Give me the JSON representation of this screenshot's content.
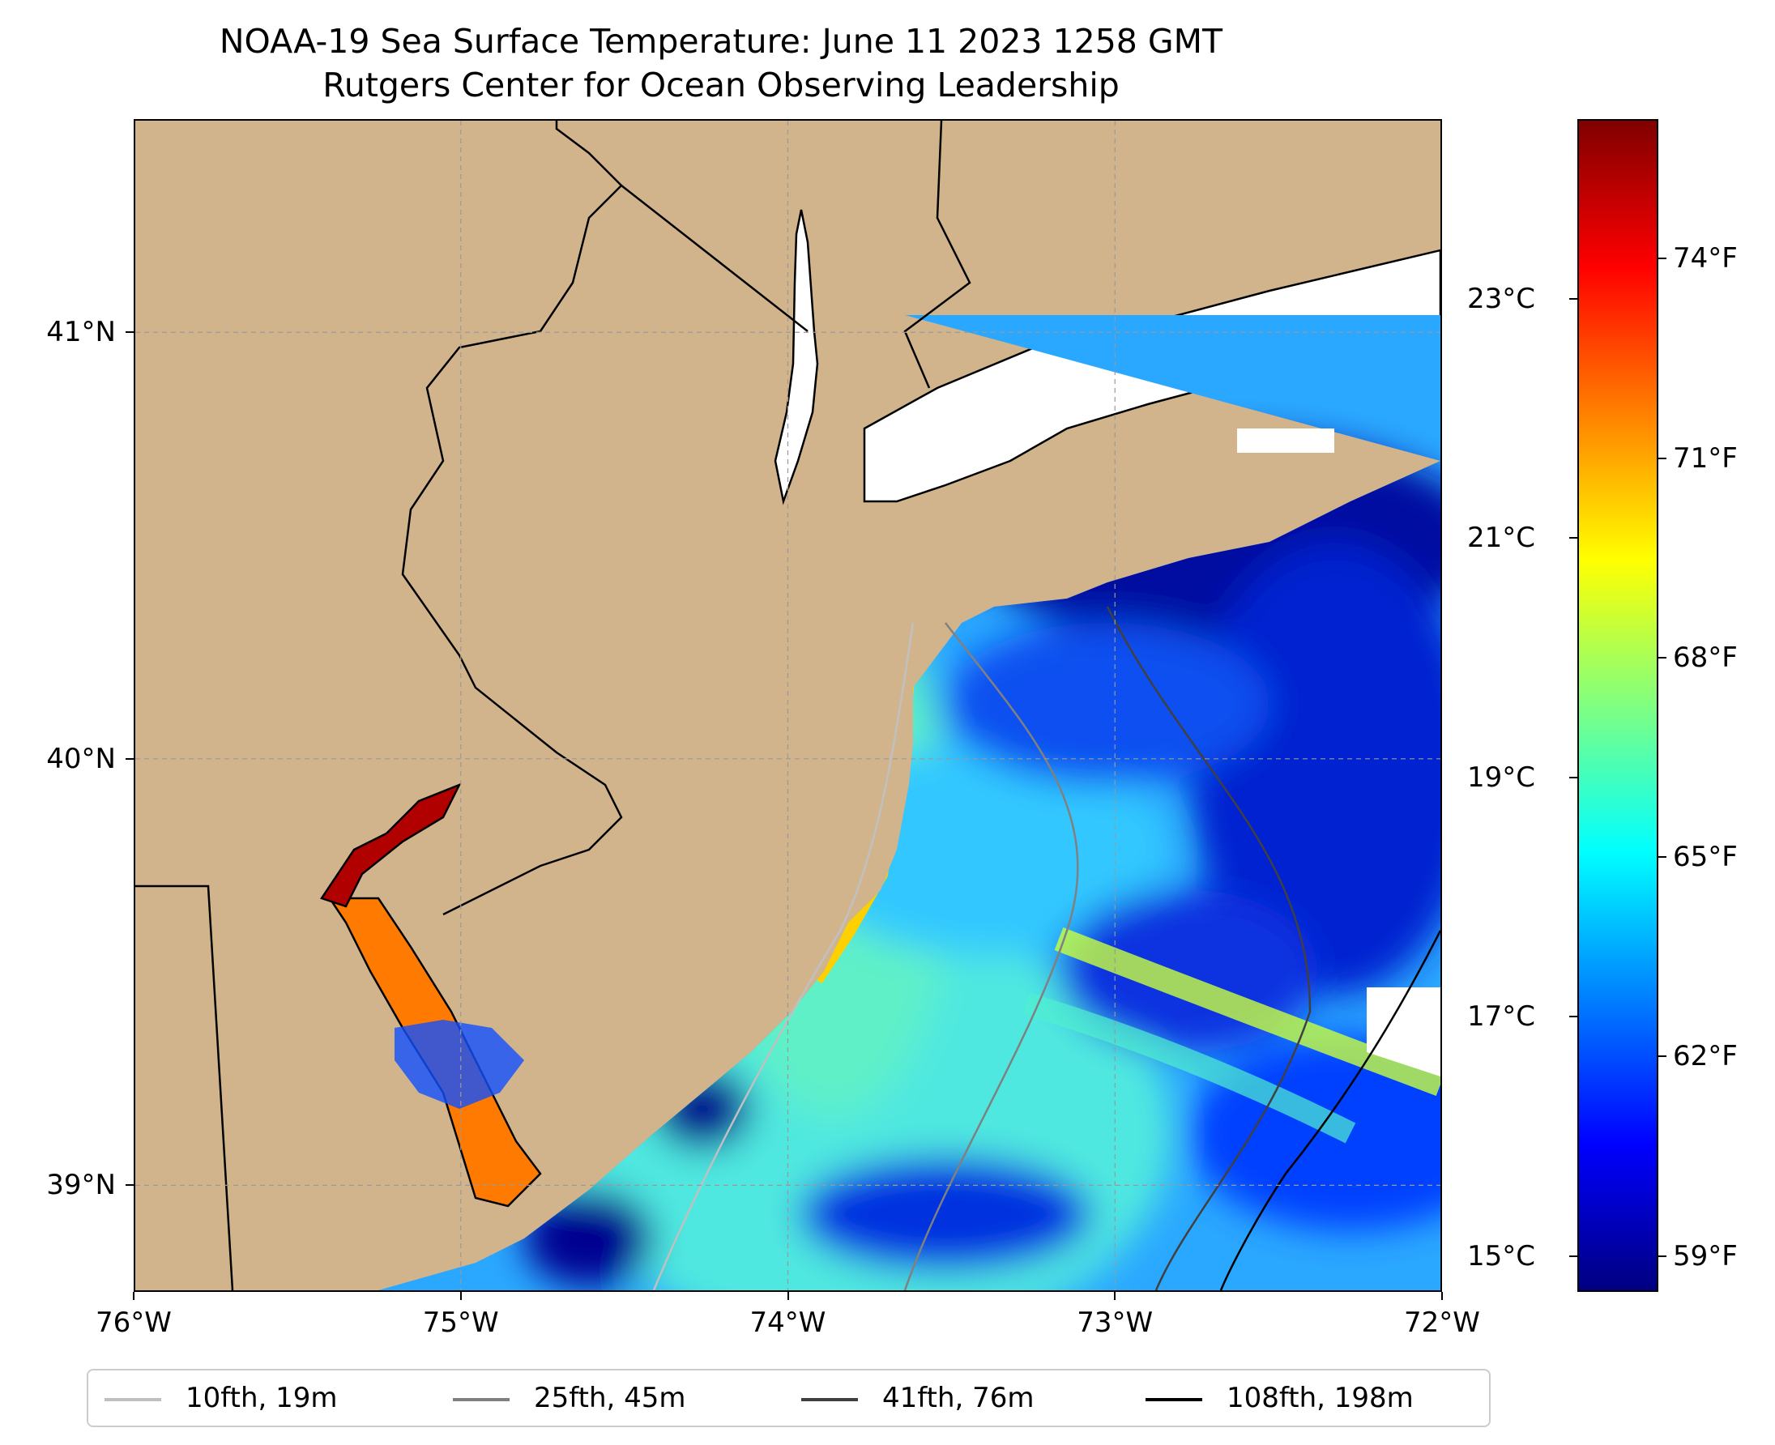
{
  "title": {
    "line1": "NOAA-19 Sea Surface Temperature: June 11 2023 1258 GMT",
    "line2": "Rutgers Center for Ocean Observing Leadership"
  },
  "map": {
    "extent": {
      "lon": [
        -76,
        -72
      ],
      "lat": [
        38.75,
        41.5
      ]
    },
    "land_color": "#d2b48c",
    "grid": "dashed",
    "x_ticks": [
      {
        "lon": -76,
        "label": "76°W"
      },
      {
        "lon": -75,
        "label": "75°W"
      },
      {
        "lon": -74,
        "label": "74°W"
      },
      {
        "lon": -73,
        "label": "73°W"
      },
      {
        "lon": -72,
        "label": "72°W"
      }
    ],
    "y_ticks": [
      {
        "lat": 41,
        "label": "41°N"
      },
      {
        "lat": 40,
        "label": "40°N"
      },
      {
        "lat": 39,
        "label": "39°N"
      }
    ]
  },
  "colorbar": {
    "colormap": "jet",
    "range_c": [
      14.7,
      24.5
    ],
    "celsius_ticks": [
      {
        "value": 23,
        "label": "23°C"
      },
      {
        "value": 21,
        "label": "21°C"
      },
      {
        "value": 19,
        "label": "19°C"
      },
      {
        "value": 17,
        "label": "17°C"
      },
      {
        "value": 15,
        "label": "15°C"
      }
    ],
    "fahrenheit_ticks": [
      {
        "value": 74,
        "label": "74°F"
      },
      {
        "value": 71,
        "label": "71°F"
      },
      {
        "value": 68,
        "label": "68°F"
      },
      {
        "value": 65,
        "label": "65°F"
      },
      {
        "value": 62,
        "label": "62°F"
      },
      {
        "value": 59,
        "label": "59°F"
      }
    ]
  },
  "legend": {
    "placement": "bottom",
    "items": [
      {
        "label": "10fth, 19m",
        "color": "#c0c0c0"
      },
      {
        "label": "25fth, 45m",
        "color": "#808080"
      },
      {
        "label": "41fth, 76m",
        "color": "#404040"
      },
      {
        "label": "108fth, 198m",
        "color": "#000000"
      }
    ]
  }
}
